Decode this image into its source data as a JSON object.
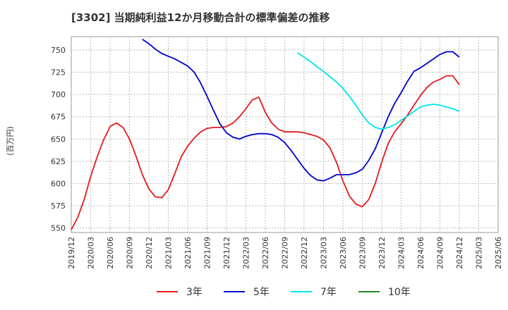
{
  "chart_data": {
    "type": "line",
    "title": "[3302]  当期純利益12か月移動合計の標準偏差の推移",
    "xlabel": "",
    "ylabel": "(百万円)",
    "ylim": [
      545,
      765
    ],
    "yticks": [
      550,
      575,
      600,
      625,
      650,
      675,
      700,
      725,
      750
    ],
    "x_months_start": "2019/12",
    "x_tick_labels": [
      "2019/12",
      "2020/03",
      "2020/06",
      "2020/09",
      "2020/12",
      "2021/03",
      "2021/06",
      "2021/09",
      "2021/12",
      "2022/03",
      "2022/06",
      "2022/09",
      "2022/12",
      "2023/03",
      "2023/06",
      "2023/09",
      "2023/12",
      "2024/03",
      "2024/06",
      "2024/09",
      "2024/12",
      "2025/03",
      "2025/06"
    ],
    "grid": true,
    "legend_position": "bottom",
    "series": [
      {
        "name": "3年",
        "color": "#e41a1c",
        "start_index": 0,
        "values": [
          548,
          562,
          582,
          608,
          630,
          649,
          664,
          668,
          663,
          650,
          631,
          610,
          594,
          585,
          584,
          593,
          611,
          630,
          642,
          651,
          658,
          662,
          663,
          663,
          664,
          668,
          675,
          684,
          694,
          697,
          680,
          668,
          661,
          658,
          658,
          658,
          657,
          655,
          653,
          649,
          640,
          624,
          603,
          586,
          577,
          574,
          582,
          600,
          624,
          645,
          658,
          667,
          677,
          688,
          699,
          708,
          714,
          717,
          721,
          721,
          711
        ]
      },
      {
        "name": "5年",
        "color": "#0000cc",
        "start_index": 11,
        "values": [
          762,
          757,
          751,
          746,
          743,
          740,
          736,
          732,
          725,
          713,
          698,
          682,
          667,
          657,
          652,
          650,
          653,
          655,
          656,
          656,
          655,
          652,
          646,
          637,
          627,
          617,
          609,
          604,
          603,
          606,
          610,
          610,
          610,
          612,
          616,
          626,
          639,
          657,
          675,
          690,
          702,
          715,
          726,
          730,
          735,
          740,
          745,
          748,
          748,
          742
        ]
      },
      {
        "name": "7年",
        "color": "#00e5ee",
        "start_index": 35,
        "values": [
          747,
          742,
          737,
          731,
          726,
          720,
          714,
          707,
          698,
          688,
          677,
          668,
          663,
          661,
          663,
          666,
          671,
          676,
          681,
          686,
          688,
          689,
          688,
          686,
          684,
          681
        ]
      },
      {
        "name": "10年",
        "color": "#228b22",
        "start_index": 0,
        "values": []
      }
    ]
  }
}
